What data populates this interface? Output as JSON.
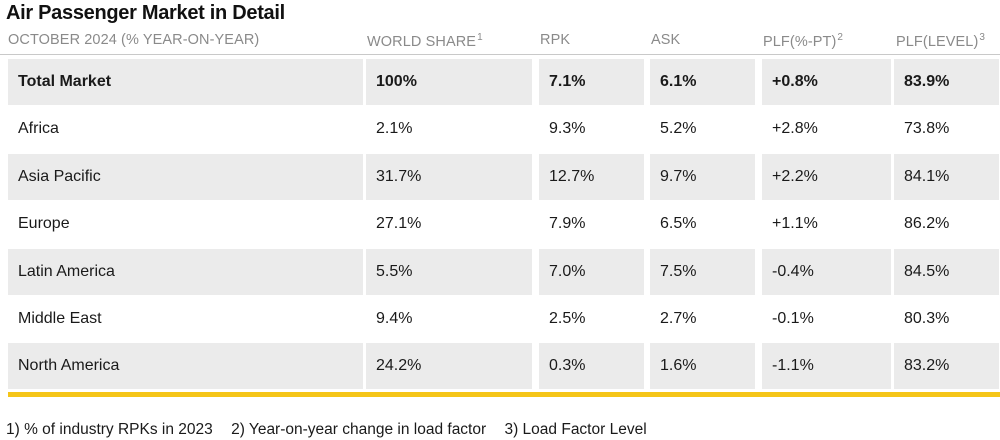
{
  "title": "Air Passenger Market in Detail",
  "headers": {
    "region": "OCTOBER 2024 (% YEAR-ON-YEAR)",
    "world_share": "WORLD SHARE",
    "world_share_sup": "1",
    "rpk": "RPK",
    "ask": "ASK",
    "plf_pt": "PLF(%-PT)",
    "plf_pt_sup": "2",
    "plf_level": "PLF(LEVEL)",
    "plf_level_sup": "3"
  },
  "rows": [
    {
      "region": "Total Market",
      "world_share": "100%",
      "rpk": "7.1%",
      "ask": "6.1%",
      "plf_pt": "+0.8%",
      "plf_level": "83.9%"
    },
    {
      "region": "Africa",
      "world_share": "2.1%",
      "rpk": "9.3%",
      "ask": "5.2%",
      "plf_pt": "+2.8%",
      "plf_level": "73.8%"
    },
    {
      "region": "Asia Pacific",
      "world_share": "31.7%",
      "rpk": "12.7%",
      "ask": "9.7%",
      "plf_pt": "+2.2%",
      "plf_level": "84.1%"
    },
    {
      "region": "Europe",
      "world_share": "27.1%",
      "rpk": "7.9%",
      "ask": "6.5%",
      "plf_pt": "+1.1%",
      "plf_level": "86.2%"
    },
    {
      "region": "Latin America",
      "world_share": "5.5%",
      "rpk": "7.0%",
      "ask": "7.5%",
      "plf_pt": "-0.4%",
      "plf_level": "84.5%"
    },
    {
      "region": "Middle East",
      "world_share": "9.4%",
      "rpk": "2.5%",
      "ask": "2.7%",
      "plf_pt": "-0.1%",
      "plf_level": "80.3%"
    },
    {
      "region": "North America",
      "world_share": "24.2%",
      "rpk": "0.3%",
      "ask": "1.6%",
      "plf_pt": "-1.1%",
      "plf_level": "83.2%"
    }
  ],
  "footnotes": [
    "1) % of industry RPKs in 2023",
    "2) Year-on-year change in load factor",
    "3) Load Factor Level"
  ],
  "colors": {
    "accent_bar": "#f5c518",
    "shaded_row": "#ebebeb",
    "header_text": "#8a8a8a"
  }
}
